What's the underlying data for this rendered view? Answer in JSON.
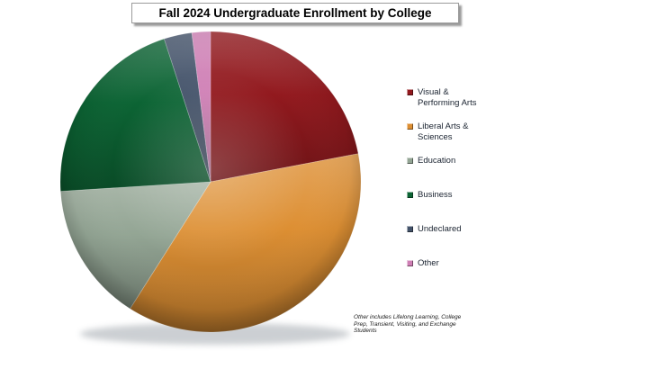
{
  "title_box": {
    "text": "Fall 2024 Undergraduate Enrollment by College"
  },
  "chart_data": {
    "type": "pie",
    "title": "Fall 2024 Undergraduate Enrollment by College",
    "legend_position": "right",
    "start_angle_deg_from_top": 0,
    "direction": "clockwise",
    "categories": [
      "Visual & Performing Arts",
      "Liberal Arts & Sciences",
      "Education",
      "Business",
      "Undeclared",
      "Other"
    ],
    "values_percent": [
      22,
      37,
      15,
      21,
      3,
      2
    ],
    "slices": [
      {
        "category": "Visual & Performing Arts",
        "legend_label": "Visual &\nPerforming Arts",
        "percent": 22,
        "color": "#92191E"
      },
      {
        "category": "Liberal Arts & Sciences",
        "legend_label": "Liberal Arts &\nSciences",
        "percent": 37,
        "color": "#DD8F33"
      },
      {
        "category": "Education",
        "legend_label": "Education",
        "percent": 15,
        "color": "#93A594"
      },
      {
        "category": "Business",
        "legend_label": "Business",
        "percent": 21,
        "color": "#0C6434"
      },
      {
        "category": "Undeclared",
        "legend_label": "Undeclared",
        "percent": 3,
        "color": "#44536A"
      },
      {
        "category": "Other",
        "legend_label": "Other",
        "percent": 2,
        "color": "#CF7FB5"
      }
    ],
    "footnote": "Other includes Lifelong Learning, College Prep, Transient, Visiting, and Exchange Students"
  }
}
